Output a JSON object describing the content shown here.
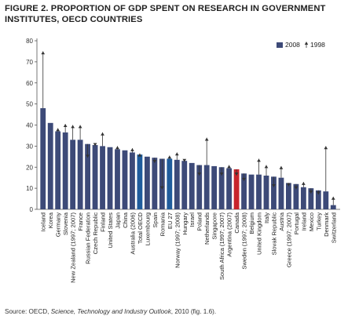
{
  "figure": {
    "title_line1": "FIGURE 2. PROPORTION OF GDP SPENT ON RESEARCH IN GOVERNMENT",
    "title_line2": "INSTITUTES, OECD COUNTRIES",
    "source_prefix": "Source: OECD, ",
    "source_italic": "Science, Technology and Industry Outlook",
    "source_suffix": ", 2010 (fig. 1.6)."
  },
  "colors": {
    "bar": "#3d4a78",
    "bar_oecd_eu": "#1f5c9c",
    "bar_canada": "#c8242b",
    "arrow": "#333333",
    "axis": "#555555"
  },
  "chart_data": {
    "type": "bar",
    "title": "",
    "xlabel": "",
    "ylabel": "",
    "ylim": [
      0,
      80
    ],
    "yticks": [
      0,
      10,
      20,
      30,
      40,
      50,
      60,
      70,
      80
    ],
    "grid": false,
    "legend_position": "top-right",
    "legend": [
      {
        "label": "2008",
        "symbol": "bar"
      },
      {
        "label": "1998",
        "symbol": "arrow"
      }
    ],
    "highlight": {
      "Total OECD": "oecd_eu",
      "EU 27": "oecd_eu",
      "Canada": "canada"
    },
    "categories": [
      "Iceland",
      "Korea",
      "Germany",
      "Slovenia",
      "New Zealand (1997; 2007)",
      "France",
      "Russian Federation",
      "Czech Republic",
      "Finland",
      "United States",
      "Japan",
      "China",
      "Australia (2006)",
      "Total OECD",
      "Luxembourg",
      "Spain",
      "Romania",
      "EU 27",
      "Norway (1997; 2008)",
      "Hungary",
      "Israel",
      "Poland",
      "Netherlands",
      "Singapore",
      "South Africa (1997; 2007)",
      "Argentina (2007)",
      "Canada",
      "Sweden (1997; 2008)",
      "Belgium",
      "United Kingdom",
      "Italy",
      "Slovak Republic",
      "Austria",
      "Greece (1997; 2007)",
      "Portugal",
      "Ireland",
      "Mexico",
      "Turkey",
      "Denmark",
      "Switzerland"
    ],
    "series": [
      {
        "name": "2008",
        "values": [
          48,
          41,
          37,
          36.5,
          33,
          33,
          31,
          30.5,
          30,
          29.5,
          28.5,
          28,
          27,
          26,
          25,
          24.5,
          24,
          24,
          23.5,
          23,
          22,
          21,
          21,
          20.5,
          20,
          19.5,
          19,
          17,
          16.5,
          16.5,
          16,
          15.5,
          15,
          12.5,
          12,
          10.5,
          10,
          9,
          8.5,
          2
        ]
      },
      {
        "name": "1998",
        "values": [
          75,
          null,
          38.5,
          40.5,
          40,
          40,
          24.5,
          30,
          36.5,
          null,
          30,
          null,
          29,
          26.5,
          null,
          22,
          9.5,
          25.5,
          27,
          22.5,
          null,
          16,
          34,
          null,
          16,
          21,
          16,
          13.5,
          null,
          24,
          21,
          10.5,
          20.5,
          11,
          9.5,
          13,
          7.5,
          7,
          30,
          6
        ]
      }
    ]
  }
}
